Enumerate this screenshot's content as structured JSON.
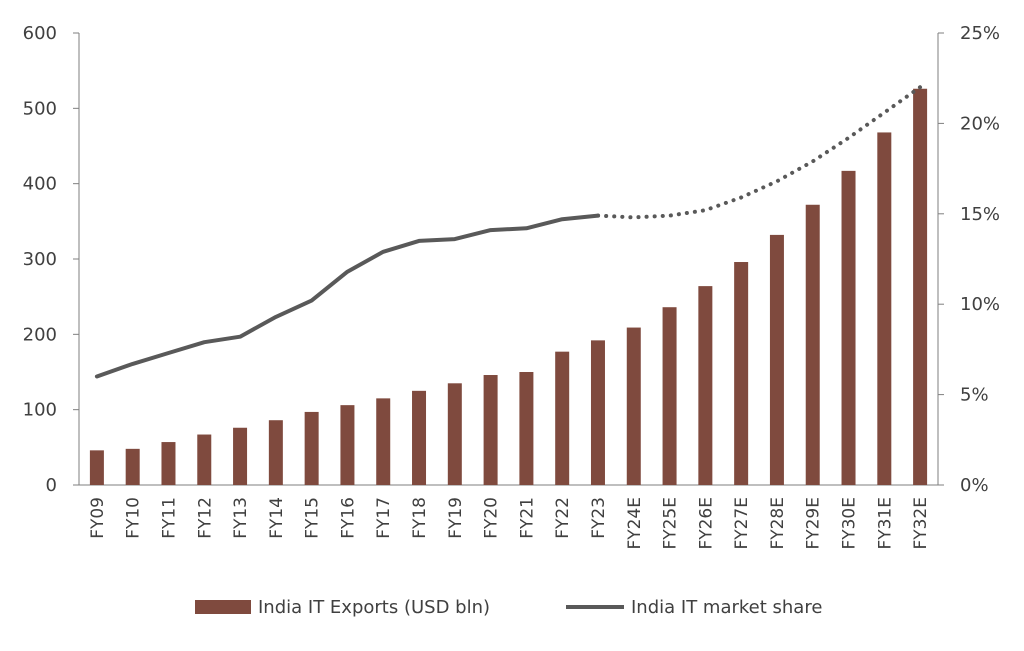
{
  "chart_data": {
    "type": "bar",
    "title": "",
    "xlabel": "",
    "ylabel": "",
    "categories": [
      "FY09",
      "FY10",
      "FY11",
      "FY12",
      "FY13",
      "FY14",
      "FY15",
      "FY16",
      "FY17",
      "FY18",
      "FY19",
      "FY20",
      "FY21",
      "FY22",
      "FY23",
      "FY24E",
      "FY25E",
      "FY26E",
      "FY27E",
      "FY28E",
      "FY29E",
      "FY30E",
      "FY31E",
      "FY32E"
    ],
    "ylim": [
      0,
      600
    ],
    "y_ticks": [
      "0",
      "100",
      "200",
      "300",
      "400",
      "500",
      "600"
    ],
    "y2lim": [
      0,
      25
    ],
    "y2_ticks": [
      "0%",
      "5%",
      "10%",
      "15%",
      "20%",
      "25%"
    ],
    "series": [
      {
        "name": "India IT Exports (USD bln)",
        "type": "bar",
        "axis": "left",
        "color": "#7f4a3e",
        "values": [
          46,
          48,
          57,
          67,
          76,
          86,
          97,
          106,
          115,
          125,
          135,
          146,
          150,
          177,
          192,
          209,
          236,
          264,
          296,
          332,
          372,
          417,
          468,
          526
        ]
      },
      {
        "name": "India IT market share",
        "type": "line",
        "axis": "right",
        "unit": "%",
        "color": "#595959",
        "actual_through": "FY23",
        "projected_style": "dotted",
        "values": [
          6.0,
          6.7,
          7.3,
          7.9,
          8.2,
          9.3,
          10.2,
          11.8,
          12.9,
          13.5,
          13.6,
          14.1,
          14.2,
          14.7,
          14.9,
          14.8,
          14.9,
          15.2,
          15.9,
          16.8,
          17.9,
          19.2,
          20.6,
          22.0
        ]
      }
    ],
    "legend_position": "bottom",
    "grid": false
  }
}
